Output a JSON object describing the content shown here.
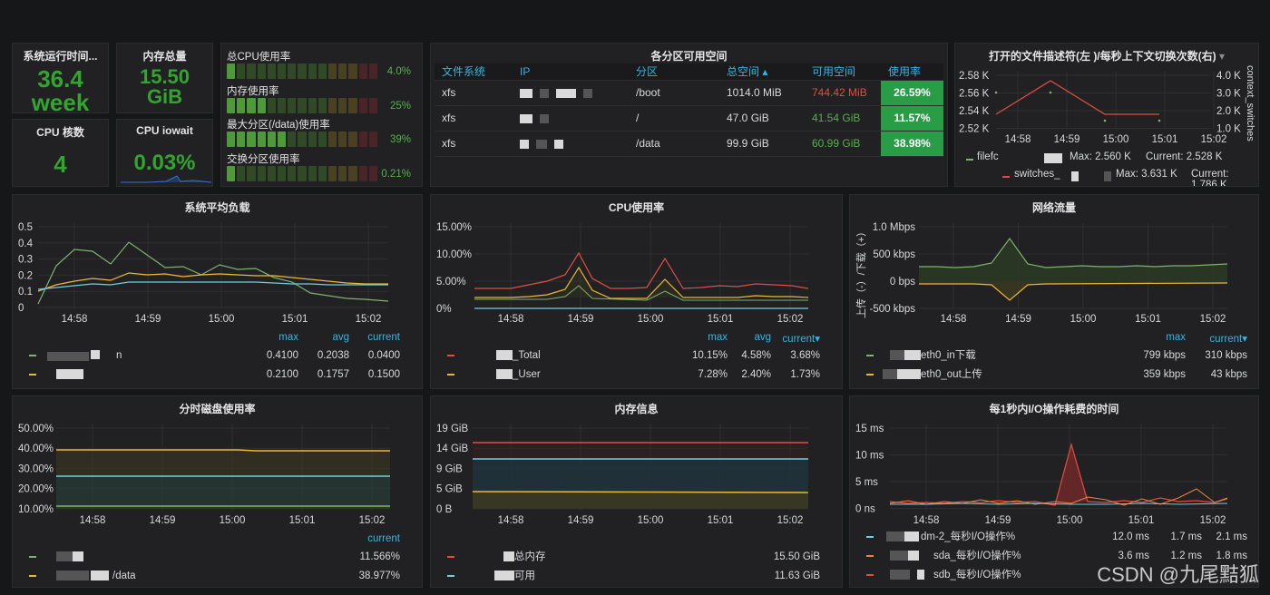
{
  "stats": {
    "uptime": {
      "title": "系统运行时间...",
      "value": "36.4",
      "unit": "week"
    },
    "memory_total": {
      "title": "内存总量",
      "value": "15.50",
      "unit": "GiB"
    },
    "cpu_cores": {
      "title": "CPU 核数",
      "value": "4"
    },
    "cpu_iowait": {
      "title": "CPU iowait",
      "value": "0.03%"
    }
  },
  "bar_gauges": [
    {
      "label": "总CPU使用率",
      "value": "4.0%",
      "fraction": 0.04
    },
    {
      "label": "内存使用率",
      "value": "25%",
      "fraction": 0.25
    },
    {
      "label": "最大分区(/data)使用率",
      "value": "39%",
      "fraction": 0.39
    },
    {
      "label": "交换分区使用率",
      "value": "0.21%",
      "fraction": 0.0021
    }
  ],
  "partitions": {
    "title": "各分区可用空间",
    "columns": [
      "文件系统",
      "IP",
      "分区",
      "总空间 ▴",
      "可用空间",
      "使用率"
    ],
    "rows": [
      {
        "fs": "xfs",
        "mount": "/boot",
        "total": "1014.0 MiB",
        "avail": "744.42 MiB",
        "avail_color": "#e24d42",
        "usage": "26.59%"
      },
      {
        "fs": "xfs",
        "mount": "/",
        "total": "47.0 GiB",
        "avail": "41.54 GiB",
        "avail_color": "#52b347",
        "usage": "11.57%"
      },
      {
        "fs": "xfs",
        "mount": "/data",
        "total": "99.9 GiB",
        "avail": "60.99 GiB",
        "avail_color": "#52b347",
        "usage": "38.98%"
      }
    ]
  },
  "filefd": {
    "title": "打开的文件描述符(左 )/每秒上下文切换次数(右)",
    "dropdown_icon": "▾",
    "right_axis_label": "context_switches",
    "y_left_ticks": [
      "2.58 K",
      "2.56 K",
      "2.54 K",
      "2.52 K"
    ],
    "y_right_ticks": [
      "4.0 K",
      "3.0 K",
      "2.0 K",
      "1.0 K"
    ],
    "x_ticks": [
      "14:58",
      "14:59",
      "15:00",
      "15:01",
      "15:02"
    ],
    "legend": [
      {
        "name": "filefc",
        "color": "#7eb26d",
        "max": "Max: 2.560 K",
        "current": "Current: 2.528 K"
      },
      {
        "name": "switches_",
        "color": "#e24d42",
        "max": "Max: 3.631 K",
        "current": "Current: 1.786 K"
      }
    ]
  },
  "load": {
    "title": "系统平均负载",
    "y_ticks": [
      "0.5",
      "0.4",
      "0.3",
      "0.2",
      "0.1",
      "0"
    ],
    "x_ticks": [
      "14:58",
      "14:59",
      "15:00",
      "15:01",
      "15:02"
    ],
    "headers": [
      "max",
      "avg",
      "current"
    ],
    "legend": [
      {
        "name": "n",
        "color": "#7eb26d",
        "max": "0.4100",
        "avg": "0.2038",
        "current": "0.0400"
      },
      {
        "name": "",
        "color": "#eab839",
        "max": "0.2100",
        "avg": "0.1757",
        "current": "0.1500"
      }
    ]
  },
  "cpu": {
    "title": "CPU使用率",
    "y_ticks": [
      "15.00%",
      "10.00%",
      "5.00%",
      "0%"
    ],
    "x_ticks": [
      "14:58",
      "14:59",
      "15:00",
      "15:01",
      "15:02"
    ],
    "headers": [
      "max",
      "avg",
      "current▾"
    ],
    "legend": [
      {
        "name": "_Total",
        "color": "#e24d42",
        "max": "10.15%",
        "avg": "4.58%",
        "current": "3.68%"
      },
      {
        "name": "_User",
        "color": "#eab839",
        "max": "7.28%",
        "avg": "2.40%",
        "current": "1.73%"
      }
    ]
  },
  "network": {
    "title": "网络流量",
    "y_axis_label": "上传（-）/下载（+）",
    "y_ticks": [
      "1.0 Mbps",
      "500 kbps",
      "0 bps",
      "-500 kbps"
    ],
    "x_ticks": [
      "14:58",
      "14:59",
      "15:00",
      "15:01",
      "15:02"
    ],
    "headers": [
      "max",
      "current▾"
    ],
    "legend": [
      {
        "name": "eth0_in下载",
        "color": "#7eb26d",
        "max": "799 kbps",
        "current": "310 kbps"
      },
      {
        "name": "eth0_out上传",
        "color": "#eab839",
        "max": "359 kbps",
        "current": "43 kbps"
      }
    ]
  },
  "disk": {
    "title": "分时磁盘使用率",
    "y_ticks": [
      "50.00%",
      "40.00%",
      "30.00%",
      "20.00%",
      "10.00%"
    ],
    "x_ticks": [
      "14:58",
      "14:59",
      "15:00",
      "15:01",
      "15:02"
    ],
    "headers": [
      "current"
    ],
    "legend": [
      {
        "name": "",
        "color": "#7eb26d",
        "current": "11.566%"
      },
      {
        "name": "/data",
        "color": "#eab839",
        "current": "38.977%"
      }
    ]
  },
  "meminfo": {
    "title": "内存信息",
    "y_ticks": [
      "19 GiB",
      "14 GiB",
      "9 GiB",
      "5 GiB",
      "0 B"
    ],
    "x_ticks": [
      "14:58",
      "14:59",
      "15:00",
      "15:01",
      "15:02"
    ],
    "legend": [
      {
        "name": "总内存",
        "color": "#e24d42",
        "value": "15.50 GiB"
      },
      {
        "name": "可用",
        "color": "#6ed0e0",
        "value": "11.63 GiB"
      }
    ]
  },
  "io": {
    "title": "每1秒内I/O操作耗费的时间",
    "y_ticks": [
      "15 ms",
      "10 ms",
      "5 ms",
      "0 ns"
    ],
    "x_ticks": [
      "14:58",
      "14:59",
      "15:00",
      "15:01",
      "15:02"
    ],
    "legend": [
      {
        "name": "dm-2_每秒I/O操作%",
        "color": "#6ed0e0",
        "v1": "12.0 ms",
        "v2": "1.7 ms",
        "v3": "2.1 ms"
      },
      {
        "name": "sda_每秒I/O操作%",
        "color": "#ef843c",
        "v1": "3.6 ms",
        "v2": "1.2 ms",
        "v3": "1.8 ms"
      },
      {
        "name": "sdb_每秒I/O操作%",
        "color": "#e24d42",
        "v1": "",
        "v2": "",
        "v3": ""
      }
    ]
  },
  "watermark": "CSDN @九尾黠狐"
}
